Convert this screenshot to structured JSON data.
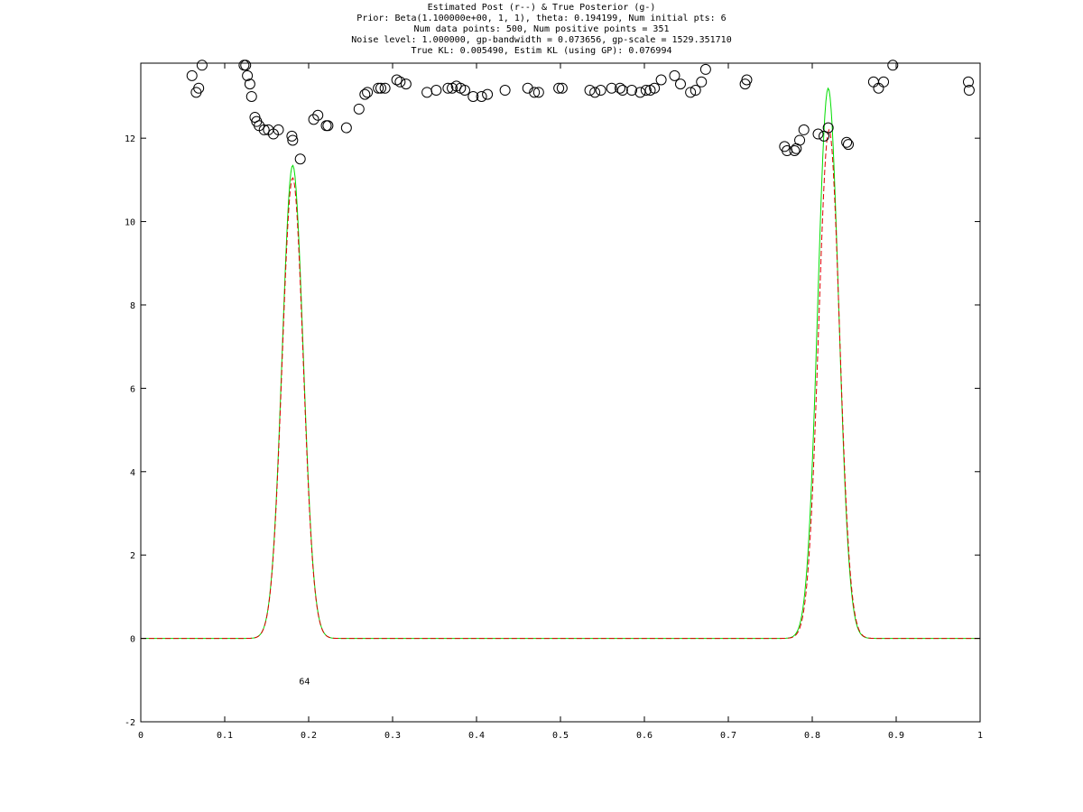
{
  "chart_data": {
    "type": "line",
    "title_lines": [
      "Estimated Post (r--) & True Posterior (g-)",
      "Prior: Beta(1.100000e+00, 1, 1), theta: 0.194199, Num initial pts: 6",
      "Num data points: 500, Num positive points = 351",
      "Noise level: 1.000000, gp-bandwidth  = 0.073656, gp-scale = 1529.351710",
      "True KL: 0.005490, Estim KL (using GP): 0.076994"
    ],
    "xlabel": "",
    "ylabel": "",
    "xlim": [
      0,
      1
    ],
    "ylim": [
      -2,
      13.8
    ],
    "x_ticks": [
      0,
      0.1,
      0.2,
      0.3,
      0.4,
      0.5,
      0.6,
      0.7,
      0.8,
      0.9,
      1
    ],
    "x_tick_labels": [
      "0",
      "0.1",
      "0.2",
      "0.3",
      "0.4",
      "0.5",
      "0.6",
      "0.7",
      "0.8",
      "0.9",
      "1"
    ],
    "y_ticks": [
      -2,
      0,
      2,
      4,
      6,
      8,
      10,
      12
    ],
    "y_tick_labels": [
      "-2",
      "0",
      "2",
      "4",
      "6",
      "8",
      "10",
      "12"
    ],
    "grid": false,
    "series": [
      {
        "color": "#00dd00",
        "dash": "solid",
        "curve": "bimodal",
        "peaks": [
          {
            "mu": 0.181,
            "sigma": 0.0125,
            "height": 11.35
          },
          {
            "mu": 0.819,
            "sigma": 0.0125,
            "height": 13.2
          }
        ]
      },
      {
        "color": "#dd0000",
        "dash": "dashed",
        "curve": "bimodal",
        "peaks": [
          {
            "mu": 0.181,
            "sigma": 0.0125,
            "height": 11.05
          },
          {
            "mu": 0.82,
            "sigma": 0.0125,
            "height": 12.2
          }
        ]
      },
      {
        "color": "#000000",
        "marker": "circle",
        "points": [
          [
            0.061,
            13.5
          ],
          [
            0.066,
            13.1
          ],
          [
            0.069,
            13.2
          ],
          [
            0.073,
            13.75
          ],
          [
            0.123,
            13.75
          ],
          [
            0.125,
            13.75
          ],
          [
            0.127,
            13.5
          ],
          [
            0.13,
            13.3
          ],
          [
            0.132,
            13.0
          ],
          [
            0.136,
            12.5
          ],
          [
            0.138,
            12.4
          ],
          [
            0.141,
            12.3
          ],
          [
            0.147,
            12.2
          ],
          [
            0.152,
            12.2
          ],
          [
            0.158,
            12.1
          ],
          [
            0.164,
            12.2
          ],
          [
            0.18,
            12.05
          ],
          [
            0.181,
            11.95
          ],
          [
            0.19,
            11.5
          ],
          [
            0.206,
            12.45
          ],
          [
            0.211,
            12.55
          ],
          [
            0.221,
            12.3
          ],
          [
            0.223,
            12.3
          ],
          [
            0.245,
            12.25
          ],
          [
            0.26,
            12.7
          ],
          [
            0.267,
            13.05
          ],
          [
            0.27,
            13.1
          ],
          [
            0.283,
            13.2
          ],
          [
            0.286,
            13.2
          ],
          [
            0.291,
            13.2
          ],
          [
            0.305,
            13.4
          ],
          [
            0.309,
            13.35
          ],
          [
            0.316,
            13.3
          ],
          [
            0.341,
            13.1
          ],
          [
            0.352,
            13.15
          ],
          [
            0.366,
            13.2
          ],
          [
            0.371,
            13.2
          ],
          [
            0.376,
            13.25
          ],
          [
            0.381,
            13.2
          ],
          [
            0.386,
            13.15
          ],
          [
            0.396,
            13.0
          ],
          [
            0.406,
            13.0
          ],
          [
            0.413,
            13.05
          ],
          [
            0.434,
            13.15
          ],
          [
            0.461,
            13.2
          ],
          [
            0.469,
            13.1
          ],
          [
            0.474,
            13.1
          ],
          [
            0.498,
            13.2
          ],
          [
            0.502,
            13.2
          ],
          [
            0.535,
            13.15
          ],
          [
            0.541,
            13.1
          ],
          [
            0.548,
            13.15
          ],
          [
            0.561,
            13.2
          ],
          [
            0.571,
            13.2
          ],
          [
            0.574,
            13.15
          ],
          [
            0.585,
            13.15
          ],
          [
            0.595,
            13.1
          ],
          [
            0.602,
            13.15
          ],
          [
            0.607,
            13.15
          ],
          [
            0.612,
            13.2
          ],
          [
            0.62,
            13.4
          ],
          [
            0.636,
            13.5
          ],
          [
            0.643,
            13.3
          ],
          [
            0.655,
            13.1
          ],
          [
            0.661,
            13.15
          ],
          [
            0.668,
            13.35
          ],
          [
            0.673,
            13.65
          ],
          [
            0.72,
            13.3
          ],
          [
            0.722,
            13.4
          ],
          [
            0.767,
            11.8
          ],
          [
            0.77,
            11.7
          ],
          [
            0.779,
            11.7
          ],
          [
            0.781,
            11.75
          ],
          [
            0.785,
            11.95
          ],
          [
            0.79,
            12.2
          ],
          [
            0.807,
            12.1
          ],
          [
            0.814,
            12.05
          ],
          [
            0.819,
            12.25
          ],
          [
            0.841,
            11.9
          ],
          [
            0.843,
            11.85
          ],
          [
            0.873,
            13.35
          ],
          [
            0.879,
            13.2
          ],
          [
            0.885,
            13.35
          ],
          [
            0.896,
            13.75
          ],
          [
            0.986,
            13.35
          ],
          [
            0.987,
            13.15
          ]
        ]
      }
    ],
    "annotations": [
      {
        "text": "64",
        "x": 0.195,
        "y": -1.1
      }
    ]
  }
}
